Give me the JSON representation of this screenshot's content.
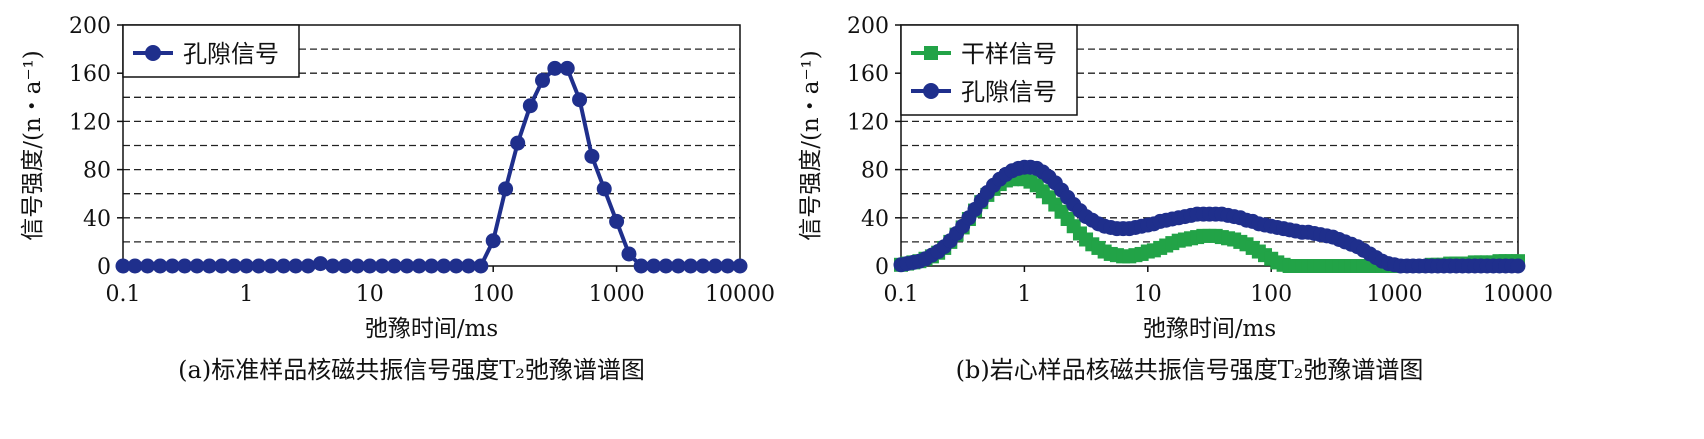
{
  "chart_data": [
    {
      "type": "line",
      "caption": "(a)标准样品核磁共振信号强度T₂弛豫谱谱图",
      "xlabel": "弛豫时间/ms",
      "ylabel": "信号强度/(n・a⁻¹)",
      "xscale": "log",
      "xlim": [
        0.1,
        10000
      ],
      "ylim": [
        0,
        200
      ],
      "xticks": [
        0.1,
        1,
        10,
        100,
        1000,
        10000
      ],
      "xtick_labels": [
        "0.1",
        "1",
        "10",
        "100",
        "1000",
        "10000"
      ],
      "yticks": [
        0,
        40,
        80,
        120,
        160,
        200
      ],
      "ytick_labels": [
        "0",
        "40",
        "80",
        "120",
        "160",
        "200"
      ],
      "grid": "horizontal-dashed",
      "legend": "top-left",
      "series": [
        {
          "name": "孔隙信号",
          "color": "#1f2f8c",
          "marker": "circle",
          "x": [
            0.1,
            0.125,
            0.158,
            0.2,
            0.251,
            0.316,
            0.398,
            0.501,
            0.631,
            0.794,
            1,
            1.26,
            1.58,
            2,
            2.51,
            3.16,
            3.98,
            5.01,
            6.31,
            7.94,
            10,
            12.6,
            15.8,
            20,
            25.1,
            31.6,
            39.8,
            50.1,
            63.1,
            79.4,
            100,
            126,
            158,
            200,
            251,
            316,
            398,
            501,
            631,
            794,
            1000,
            1260,
            1580,
            2000,
            2510,
            3160,
            3980,
            5010,
            6310,
            7940,
            10000
          ],
          "y": [
            0,
            0,
            0,
            0,
            0,
            0,
            0,
            0,
            0,
            0,
            0,
            0,
            0,
            0,
            0,
            0,
            2,
            0,
            0,
            0,
            0,
            0,
            0,
            0,
            0,
            0,
            0,
            0,
            0,
            0,
            21,
            64,
            102,
            133,
            154,
            164,
            164,
            138,
            91,
            64,
            37,
            10,
            0,
            0,
            0,
            0,
            0,
            0,
            0,
            0,
            0
          ]
        }
      ]
    },
    {
      "type": "line",
      "caption": "(b)岩心样品核磁共振信号强度T₂弛豫谱谱图",
      "xlabel": "弛豫时间/ms",
      "ylabel": "信号强度/(n・a⁻¹)",
      "xscale": "log",
      "xlim": [
        0.1,
        10000
      ],
      "ylim": [
        0,
        200
      ],
      "xticks": [
        0.1,
        1,
        10,
        100,
        1000,
        10000
      ],
      "xtick_labels": [
        "0.1",
        "1",
        "10",
        "100",
        "1000",
        "10000"
      ],
      "yticks": [
        0,
        40,
        80,
        120,
        160,
        200
      ],
      "ytick_labels": [
        "0",
        "40",
        "80",
        "120",
        "160",
        "200"
      ],
      "grid": "horizontal-dashed",
      "legend": "top-left",
      "series": [
        {
          "name": "干样信号",
          "color": "#22a347",
          "marker": "square",
          "x": [
            0.1,
            0.112,
            0.126,
            0.141,
            0.158,
            0.178,
            0.2,
            0.224,
            0.251,
            0.282,
            0.316,
            0.355,
            0.398,
            0.447,
            0.501,
            0.562,
            0.631,
            0.708,
            0.794,
            0.891,
            1,
            1.12,
            1.26,
            1.41,
            1.58,
            1.78,
            2,
            2.24,
            2.51,
            2.82,
            3.16,
            3.55,
            3.98,
            4.47,
            5.01,
            5.62,
            6.31,
            7.08,
            7.94,
            8.91,
            10,
            11.2,
            12.6,
            14.1,
            15.8,
            17.8,
            20,
            22.4,
            25.1,
            28.2,
            31.6,
            35.5,
            39.8,
            44.7,
            50.1,
            56.2,
            63.1,
            70.8,
            79.4,
            89.1,
            100,
            112,
            126,
            141,
            158,
            178,
            200,
            224,
            251,
            282,
            316,
            355,
            398,
            447,
            501,
            562,
            631,
            708,
            794,
            891,
            1000,
            1120,
            1260,
            1410,
            1580,
            1780,
            2000,
            2240,
            2510,
            2820,
            3160,
            3550,
            3980,
            4470,
            5010,
            5620,
            6310,
            7080,
            7940,
            8910,
            10000
          ],
          "y": [
            1,
            2,
            3,
            4,
            6,
            8,
            11,
            15,
            20,
            26,
            32,
            39,
            46,
            53,
            59,
            64,
            68,
            71,
            72,
            73,
            72,
            70,
            67,
            62,
            57,
            51,
            45,
            39,
            33,
            27,
            22,
            18,
            15,
            12,
            10,
            9,
            8,
            8,
            9,
            10,
            12,
            13,
            15,
            17,
            19,
            21,
            22,
            23,
            24,
            25,
            25,
            25,
            24,
            23,
            22,
            20,
            18,
            15,
            12,
            9,
            6,
            3,
            1,
            0,
            0,
            0,
            0,
            0,
            0,
            0,
            0,
            0,
            0,
            0,
            0,
            0,
            0,
            0,
            0,
            0,
            0,
            0,
            0,
            0,
            0,
            0,
            1,
            1,
            1,
            2,
            2,
            2,
            2,
            3,
            3,
            3,
            3,
            4,
            4,
            4,
            4
          ]
        },
        {
          "name": "孔隙信号",
          "color": "#1f2f8c",
          "marker": "circle",
          "x": [
            0.1,
            0.112,
            0.126,
            0.141,
            0.158,
            0.178,
            0.2,
            0.224,
            0.251,
            0.282,
            0.316,
            0.355,
            0.398,
            0.447,
            0.501,
            0.562,
            0.631,
            0.708,
            0.794,
            0.891,
            1,
            1.12,
            1.26,
            1.41,
            1.58,
            1.78,
            2,
            2.24,
            2.51,
            2.82,
            3.16,
            3.55,
            3.98,
            4.47,
            5.01,
            5.62,
            6.31,
            7.08,
            7.94,
            8.91,
            10,
            11.2,
            12.6,
            14.1,
            15.8,
            17.8,
            20,
            22.4,
            25.1,
            28.2,
            31.6,
            35.5,
            39.8,
            44.7,
            50.1,
            56.2,
            63.1,
            70.8,
            79.4,
            89.1,
            100,
            112,
            126,
            141,
            158,
            178,
            200,
            224,
            251,
            282,
            316,
            355,
            398,
            447,
            501,
            562,
            631,
            708,
            794,
            891,
            1000,
            1120,
            1260,
            1410,
            1580,
            1780,
            2000,
            2240,
            2510,
            2820,
            3160,
            3550,
            3980,
            4470,
            5010,
            5620,
            6310,
            7080,
            7940,
            8910,
            10000
          ],
          "y": [
            1,
            2,
            3,
            4,
            6,
            9,
            12,
            16,
            21,
            27,
            33,
            40,
            47,
            54,
            61,
            67,
            72,
            76,
            79,
            81,
            82,
            82,
            81,
            78,
            74,
            69,
            63,
            57,
            51,
            46,
            41,
            38,
            35,
            33,
            32,
            31,
            31,
            31,
            32,
            33,
            34,
            35,
            37,
            38,
            39,
            40,
            41,
            42,
            43,
            43,
            43,
            43,
            43,
            42,
            41,
            40,
            38,
            37,
            35,
            34,
            33,
            32,
            31,
            30,
            29,
            28,
            28,
            27,
            26,
            25,
            24,
            22,
            20,
            18,
            16,
            13,
            10,
            7,
            4,
            2,
            1,
            0,
            0,
            0,
            0,
            0,
            0,
            0,
            0,
            0,
            0,
            0,
            0,
            0,
            0,
            0,
            0,
            0,
            0,
            0,
            0
          ]
        }
      ]
    }
  ]
}
